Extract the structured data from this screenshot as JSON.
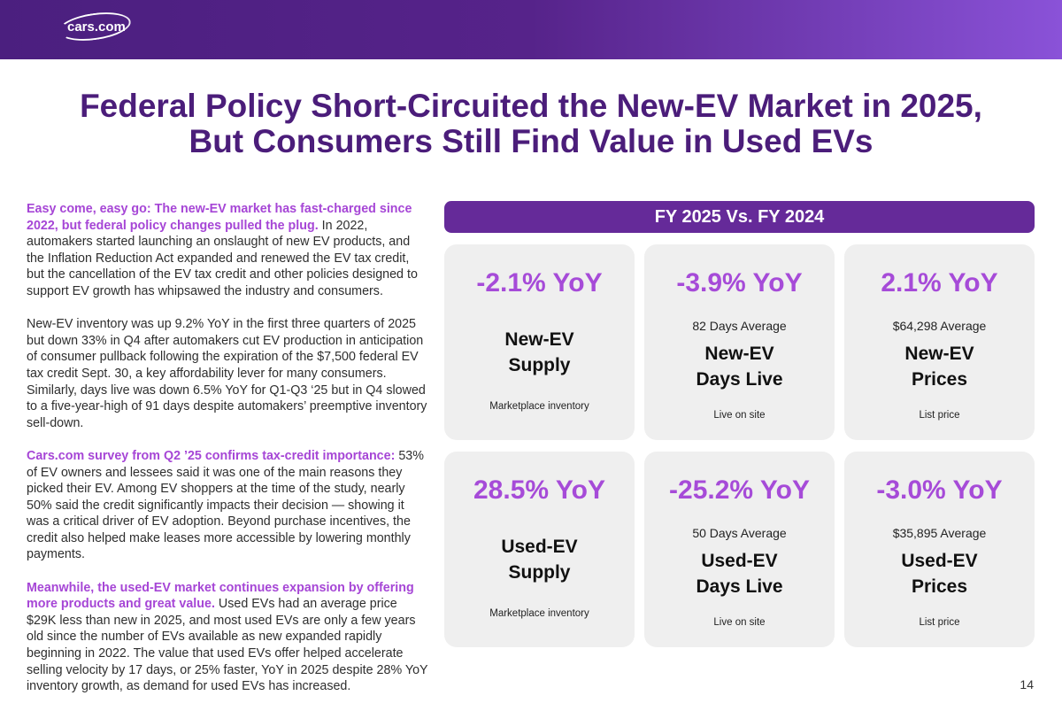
{
  "header": {
    "logo": "cars.com"
  },
  "title": {
    "line1": "Federal Policy Short-Circuited the New-EV Market in 2025,",
    "line2": "But Consumers Still Find Value in Used EVs"
  },
  "body": [
    {
      "lead": "Easy come, easy go: The new-EV market has fast-charged since 2022, but federal policy changes pulled the plug.",
      "text": " In 2022, automakers started launching an onslaught of new EV products, and the Inflation Reduction Act expanded and renewed the EV tax credit, but the cancellation of the EV tax credit and other policies designed to support EV growth has whipsawed the industry and consumers."
    },
    {
      "lead": "",
      "text": "New-EV inventory was up 9.2% YoY in the first three quarters of 2025 but down 33% in Q4 after automakers cut EV production in anticipation of consumer pullback following the expiration of the $7,500 federal EV tax credit Sept. 30, a key affordability lever for many consumers. Similarly, days live was down 6.5% YoY for Q1-Q3 ‘25 but in Q4 slowed to a five-year-high of 91 days despite automakers’ preemptive inventory sell-down."
    },
    {
      "lead": "Cars.com survey from Q2 ’25 confirms tax-credit importance:",
      "text": " 53% of EV owners and lessees said it was one of the main reasons they picked their EV. Among EV shoppers at the time of the study, nearly 50% said the credit significantly impacts their decision — showing it was a critical driver of EV adoption. Beyond purchase incentives, the credit also helped make leases more accessible by lowering monthly payments."
    },
    {
      "lead": "Meanwhile, the used-EV market continues expansion by offering more products and great value.",
      "text": " Used EVs had an average price $29K less than new in 2025, and most used EVs are only a few years old since the number of EVs available as new expanded rapidly beginning in 2022. The value that used EVs offer helped accelerate selling velocity by 17 days, or 25% faster, YoY in 2025 despite 28% YoY inventory growth, as demand for used EVs has increased."
    }
  ],
  "banner": "FY 2025 Vs. FY 2024",
  "cards": [
    {
      "yoy": "-2.1% YoY",
      "avg": "",
      "t1": "New-EV",
      "t2": "Supply",
      "sub": "Marketplace inventory"
    },
    {
      "yoy": "-3.9% YoY",
      "avg": "82 Days Average",
      "t1": "New-EV",
      "t2": "Days Live",
      "sub": "Live on site"
    },
    {
      "yoy": "2.1% YoY",
      "avg": "$64,298 Average",
      "t1": "New-EV",
      "t2": "Prices",
      "sub": "List price"
    },
    {
      "yoy": "28.5% YoY",
      "avg": "",
      "t1": "Used-EV",
      "t2": "Supply",
      "sub": "Marketplace inventory"
    },
    {
      "yoy": "-25.2% YoY",
      "avg": "50 Days Average",
      "t1": "Used-EV",
      "t2": "Days Live",
      "sub": "Live on site"
    },
    {
      "yoy": "-3.0% YoY",
      "avg": "$35,895 Average",
      "t1": "Used-EV",
      "t2": "Prices",
      "sub": "List price"
    }
  ],
  "colors": {
    "header": "#56238a",
    "title": "#4b1d7a",
    "accent": "#a64bd8",
    "banner": "#652a99"
  },
  "page_number": "14"
}
